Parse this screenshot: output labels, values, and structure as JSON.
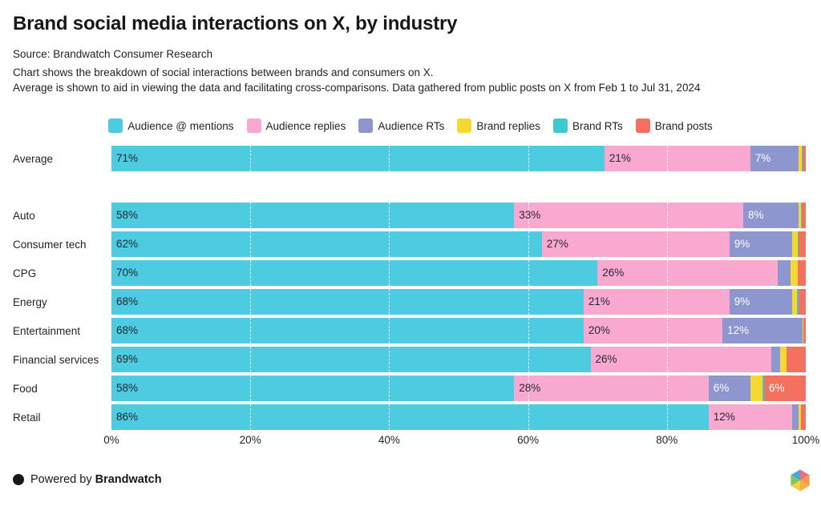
{
  "header": {
    "title": "Brand social media interactions on X, by industry",
    "source": "Source: Brandwatch Consumer Research",
    "description_line1": "Chart shows the breakdown of social interactions between brands and consumers on X.",
    "description_line2": "Average is shown to aid in viewing the data and facilitating cross-comparisons. Data gathered from public posts on X from Feb 1 to Jul 31, 2024"
  },
  "chart_data": {
    "type": "bar",
    "stacked": true,
    "orientation": "horizontal",
    "xlim": [
      0,
      100
    ],
    "x_ticks": [
      "0%",
      "20%",
      "40%",
      "60%",
      "80%",
      "100%"
    ],
    "gridlines_percent": [
      20,
      40,
      60,
      80
    ],
    "legend_position": "top-center",
    "series": [
      {
        "name": "Audience @ mentions",
        "color": "#4DCBE0",
        "label_color": "#26292e"
      },
      {
        "name": "Audience replies",
        "color": "#F9A8D0",
        "label_color": "#26292e"
      },
      {
        "name": "Audience RTs",
        "color": "#8D96CE",
        "label_color": "#ffffff"
      },
      {
        "name": "Brand replies",
        "color": "#F6D832",
        "label_color": "#26292e"
      },
      {
        "name": "Brand RTs",
        "color": "#3FC9CF",
        "label_color": "#26292e"
      },
      {
        "name": "Brand posts",
        "color": "#F4715F",
        "label_color": "#ffffff"
      }
    ],
    "rows": [
      {
        "category": "Average",
        "values": [
          71,
          21,
          7,
          0.4,
          0.1,
          0.5
        ],
        "labels": [
          "71%",
          "21%",
          "7%",
          "",
          "",
          ""
        ],
        "gap_after": true
      },
      {
        "category": "Auto",
        "values": [
          58,
          33,
          8,
          0.3,
          0.1,
          0.6
        ],
        "labels": [
          "58%",
          "33%",
          "8%",
          "",
          "",
          ""
        ]
      },
      {
        "category": "Consumer tech",
        "values": [
          62,
          27,
          9,
          0.9,
          0.1,
          1.0
        ],
        "labels": [
          "62%",
          "27%",
          "9%",
          "",
          "",
          ""
        ]
      },
      {
        "category": "CPG",
        "values": [
          70,
          26,
          1.8,
          1.0,
          0.1,
          1.1
        ],
        "labels": [
          "70%",
          "26%",
          "",
          "",
          "",
          ""
        ]
      },
      {
        "category": "Energy",
        "values": [
          68,
          21,
          9,
          0.7,
          0.3,
          1.0
        ],
        "labels": [
          "68%",
          "21%",
          "9%",
          "",
          "",
          ""
        ]
      },
      {
        "category": "Entertainment",
        "values": [
          68,
          20,
          11.5,
          0.2,
          0.0,
          0.3
        ],
        "labels": [
          "68%",
          "20%",
          "12%",
          "",
          "",
          ""
        ]
      },
      {
        "category": "Financial services",
        "values": [
          69,
          26,
          1.3,
          0.9,
          0.0,
          2.8
        ],
        "labels": [
          "69%",
          "26%",
          "",
          "",
          "",
          ""
        ]
      },
      {
        "category": "Food",
        "values": [
          58,
          28,
          6,
          1.8,
          0.2,
          6
        ],
        "labels": [
          "58%",
          "28%",
          "6%",
          "",
          "",
          "6%"
        ]
      },
      {
        "category": "Retail",
        "values": [
          86,
          12,
          1.0,
          0.3,
          0.0,
          0.7
        ],
        "labels": [
          "86%",
          "12%",
          "",
          "",
          "",
          ""
        ]
      }
    ]
  },
  "footer": {
    "powered_by": "Powered by",
    "brand": "Brandwatch"
  }
}
